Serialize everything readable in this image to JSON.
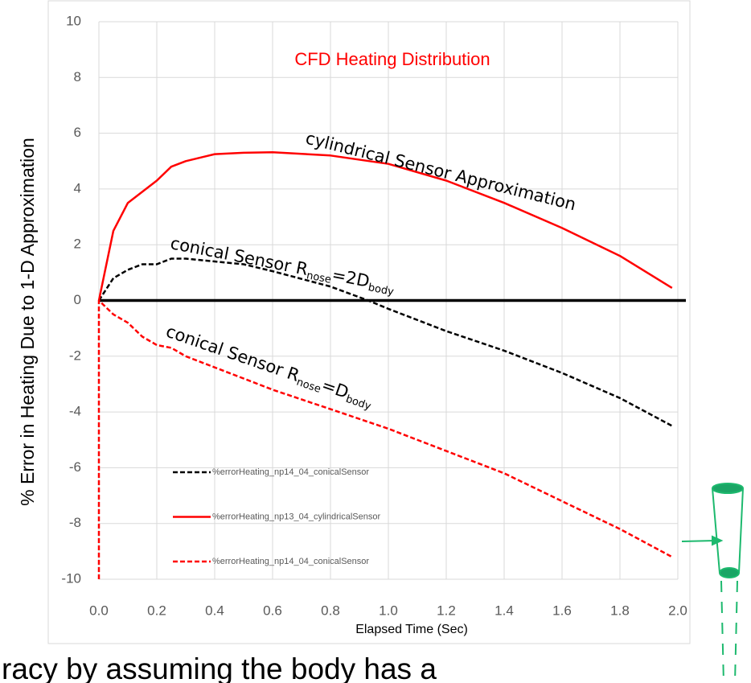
{
  "chart_data": {
    "type": "line",
    "title": "CFD Heating Distribution",
    "x_label": "Elapsed Time (Sec)",
    "y_label": "%  Error in Heating Due to  1-D Approximation",
    "annotations": {
      "cylindrical": "cylindrical Sensor Approximation",
      "conical_2d": [
        "conical Sensor R",
        "nose",
        "=2D",
        "body"
      ],
      "conical_d": [
        "conical Sensor R",
        "nose",
        "=D",
        "body"
      ]
    },
    "caption": "racy by assuming the body has a",
    "xlim": [
      0,
      2
    ],
    "xticks": [
      {
        "value": 0,
        "label": "0.0"
      },
      {
        "value": 0.2,
        "label": "0.2"
      },
      {
        "value": 0.4,
        "label": "0.4"
      },
      {
        "value": 0.6,
        "label": "0.6"
      },
      {
        "value": 0.8,
        "label": "0.8"
      },
      {
        "value": 1,
        "label": "1.0"
      },
      {
        "value": 1.2,
        "label": "1.2"
      },
      {
        "value": 1.4,
        "label": "1.4"
      },
      {
        "value": 1.6,
        "label": "1.6"
      },
      {
        "value": 1.8,
        "label": "1.8"
      },
      {
        "value": 2,
        "label": "2.0"
      }
    ],
    "ylim": [
      -10,
      10
    ],
    "yticks": [
      10,
      8,
      6,
      4,
      2,
      0,
      -2,
      -4,
      -6,
      -8,
      -10
    ],
    "grid": true,
    "series": [
      {
        "name": "%errorHeating_np14_04_conicalSensor",
        "color": "#000000",
        "dash": true,
        "x": [
          0,
          0.05,
          0.1,
          0.15,
          0.2,
          0.25,
          0.3,
          0.4,
          0.5,
          0.6,
          0.8,
          0.93,
          1.0,
          1.2,
          1.4,
          1.6,
          1.8,
          1.98
        ],
        "values": [
          0,
          0.8,
          1.1,
          1.3,
          1.3,
          1.5,
          1.5,
          1.4,
          1.3,
          1.05,
          0.5,
          0,
          -0.3,
          -1.1,
          -1.8,
          -2.6,
          -3.5,
          -4.5
        ]
      },
      {
        "name": "%errorHeating_np13_04_cylindricalSensor",
        "color": "#ff0000",
        "dash": false,
        "x": [
          0,
          0.02,
          0.05,
          0.1,
          0.15,
          0.2,
          0.25,
          0.3,
          0.4,
          0.5,
          0.6,
          0.8,
          1.0,
          1.2,
          1.4,
          1.6,
          1.8,
          1.98
        ],
        "values": [
          0,
          1,
          2.5,
          3.5,
          3.9,
          4.3,
          4.8,
          5.0,
          5.25,
          5.3,
          5.32,
          5.2,
          4.9,
          4.3,
          3.5,
          2.6,
          1.6,
          0.45
        ]
      },
      {
        "name": "%errorHeating_np14_04_conicalSensor",
        "color": "#ff0000",
        "dash": true,
        "x": [
          0,
          0,
          0.05,
          0.1,
          0.15,
          0.2,
          0.25,
          0.3,
          0.4,
          0.5,
          0.6,
          0.8,
          1.0,
          1.2,
          1.4,
          1.6,
          1.8,
          1.98
        ],
        "values": [
          -10,
          0,
          -0.5,
          -0.8,
          -1.3,
          -1.6,
          -1.7,
          -2.0,
          -2.4,
          -2.8,
          -3.2,
          -3.9,
          -4.6,
          -5.4,
          -6.2,
          -7.2,
          -8.2,
          -9.2
        ]
      }
    ]
  }
}
